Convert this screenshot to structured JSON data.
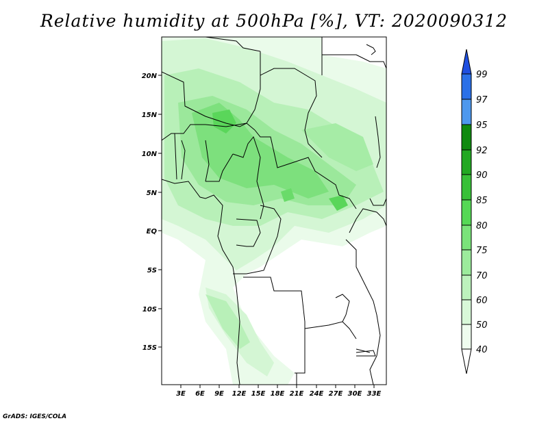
{
  "title": "Relative humidity at 500hPa [%], VT: 2020090312",
  "credit": "GrADS: IGES/COLA",
  "map": {
    "lon_labels": [
      "3E",
      "6E",
      "9E",
      "12E",
      "15E",
      "18E",
      "21E",
      "24E",
      "27E",
      "30E",
      "33E"
    ],
    "lat_labels": [
      "20N",
      "15N",
      "10N",
      "5N",
      "EQ",
      "5S",
      "10S",
      "15S"
    ]
  },
  "colorbar": {
    "levels": [
      "99",
      "97",
      "95",
      "92",
      "90",
      "85",
      "80",
      "75",
      "70",
      "60",
      "50",
      "40"
    ],
    "colors": [
      "#1f4fe0",
      "#2a70e8",
      "#4d98ee",
      "#0f8a0f",
      "#22a822",
      "#38c038",
      "#55d855",
      "#7ae37a",
      "#9ceb9c",
      "#bdf2bd",
      "#d8f8d8",
      "#eefcee"
    ]
  }
}
